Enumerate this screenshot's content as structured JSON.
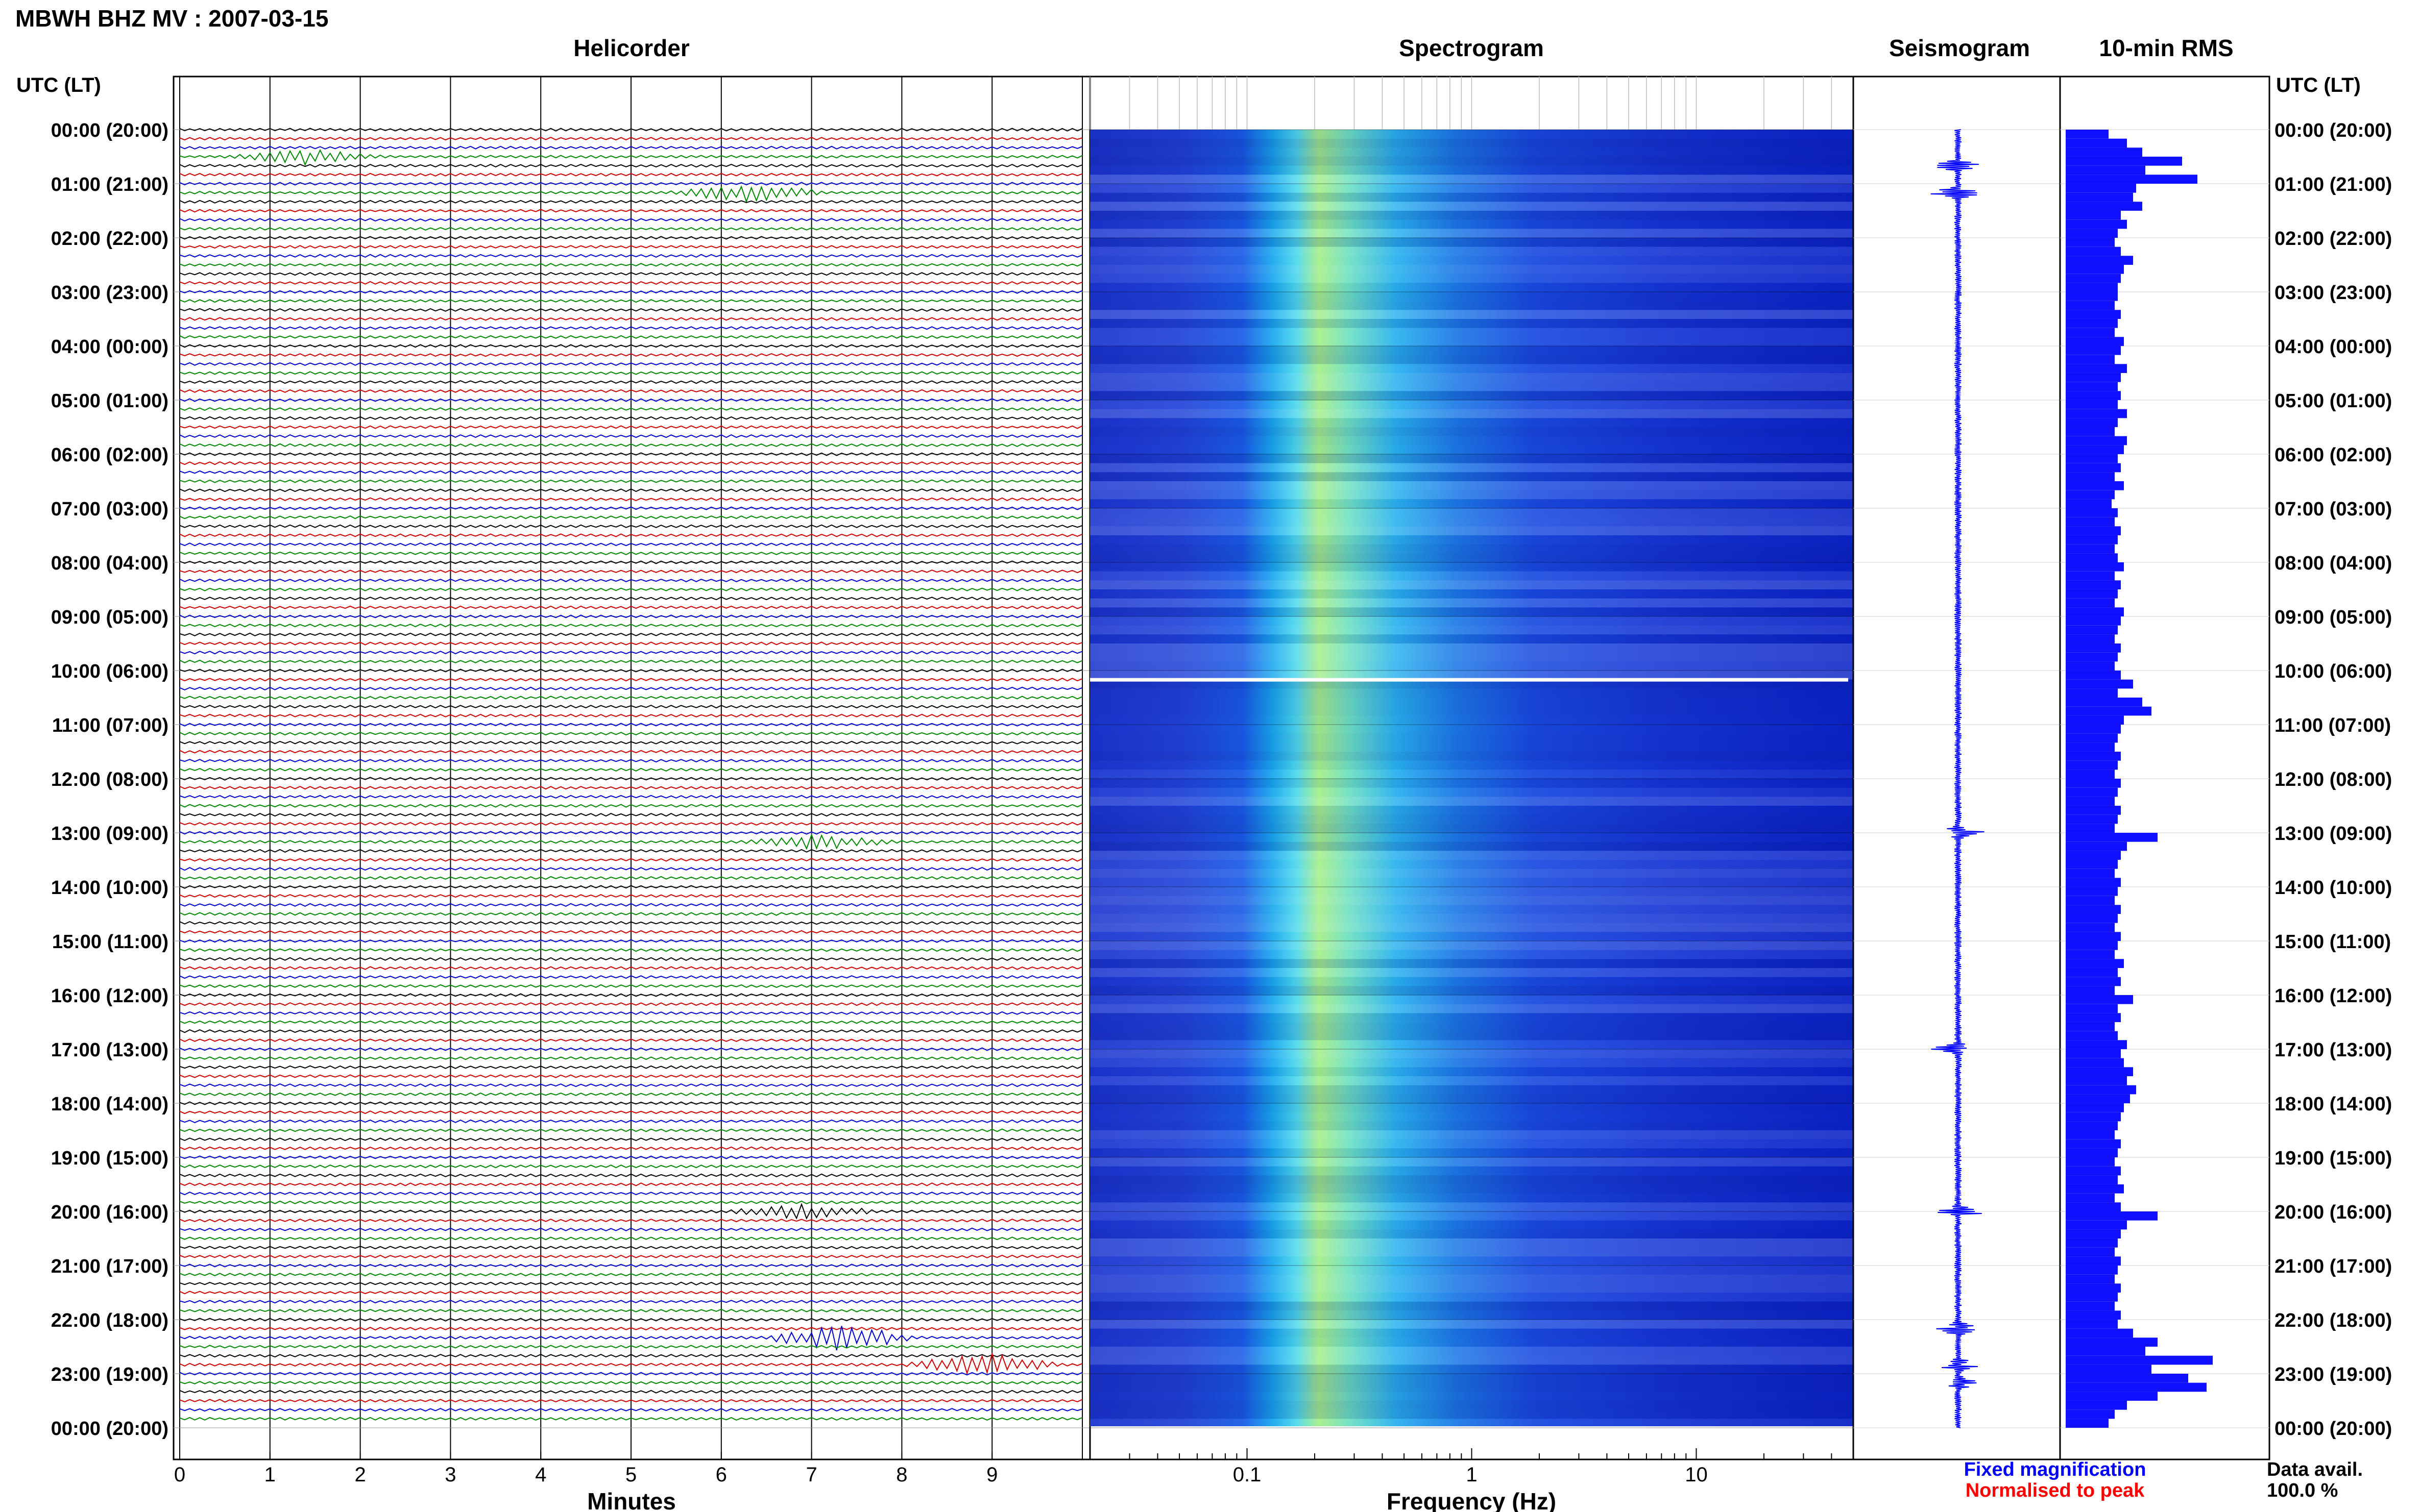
{
  "title": "MBWH BHZ MV : 2007-03-15",
  "panels": {
    "helicorder": "Helicorder",
    "spectrogram": "Spectrogram",
    "seismogram": "Seismogram",
    "rms": "10-min RMS"
  },
  "axis_headers": {
    "left": "UTC (LT)",
    "right": "UTC (LT)"
  },
  "time_labels": [
    "00:00 (20:00)",
    "01:00 (21:00)",
    "02:00 (22:00)",
    "03:00 (23:00)",
    "04:00 (00:00)",
    "05:00 (01:00)",
    "06:00 (02:00)",
    "07:00 (03:00)",
    "08:00 (04:00)",
    "09:00 (05:00)",
    "10:00 (06:00)",
    "11:00 (07:00)",
    "12:00 (08:00)",
    "13:00 (09:00)",
    "14:00 (10:00)",
    "15:00 (11:00)",
    "16:00 (12:00)",
    "17:00 (13:00)",
    "18:00 (14:00)",
    "19:00 (15:00)",
    "20:00 (16:00)",
    "21:00 (17:00)",
    "22:00 (18:00)",
    "23:00 (19:00)",
    "00:00 (20:00)"
  ],
  "x_axes": {
    "helicorder": {
      "label": "Minutes",
      "ticks": [
        "0",
        "1",
        "2",
        "3",
        "4",
        "5",
        "6",
        "7",
        "8",
        "9"
      ],
      "range": [
        0,
        10
      ]
    },
    "spectrogram": {
      "label": "Frequency (Hz)",
      "ticks": [
        "0.1",
        "1",
        "10"
      ],
      "scale": "log",
      "range": [
        0.02,
        50
      ]
    }
  },
  "legend": {
    "fixed": "Fixed magnification",
    "normalised": "Normalised to peak",
    "fixed_color": "#0000ff",
    "normalised_color": "#ff0000"
  },
  "data_avail": {
    "label": "Data avail.",
    "value": "100.0 %"
  },
  "colors": {
    "trace_cycle": [
      "#000000",
      "#cc0000",
      "#0000cc",
      "#008800"
    ],
    "spectrogram_base": "#1a2fd6",
    "rms_bar": "#1010ff"
  },
  "chart_data": [
    {
      "type": "line",
      "name": "Helicorder",
      "x_unit": "minutes",
      "xlim": [
        0,
        10
      ],
      "rows_per_hour": 6,
      "rows": 144,
      "events": [
        {
          "time": "00:30",
          "minute": 1.4,
          "amplitude": 3
        },
        {
          "time": "01:10",
          "minute": 6.3,
          "amplitude": 4
        },
        {
          "time": "13:10",
          "minute": 7.1,
          "amplitude": 3
        },
        {
          "time": "20:00",
          "minute": 6.9,
          "amplitude": 3
        },
        {
          "time": "22:20",
          "minute": 7.3,
          "amplitude": 6
        },
        {
          "time": "22:50",
          "minute": 8.9,
          "amplitude": 5
        }
      ]
    },
    {
      "type": "heatmap",
      "name": "Spectrogram",
      "x_unit": "Hz",
      "x_scale": "log",
      "xlim": [
        0.02,
        50
      ],
      "dominant_band_hz": [
        0.2,
        0.5
      ],
      "gap_time": "10:10"
    },
    {
      "type": "line",
      "name": "Seismogram",
      "bursts": [
        "00:40",
        "01:10",
        "13:00",
        "17:00",
        "20:00",
        "22:10",
        "22:50",
        "23:10"
      ]
    },
    {
      "type": "bar",
      "name": "10-min RMS",
      "orientation": "horizontal",
      "categories": [
        "00:00",
        "00:10",
        "00:20",
        "00:30",
        "00:40",
        "00:50",
        "01:00",
        "01:10",
        "01:20",
        "01:30",
        "01:40",
        "01:50",
        "02:00",
        "02:10",
        "02:20",
        "02:30",
        "02:40",
        "02:50",
        "03:00",
        "03:10",
        "03:20",
        "03:30",
        "03:40",
        "03:50",
        "04:00",
        "04:10",
        "04:20",
        "04:30",
        "04:40",
        "04:50",
        "05:00",
        "05:10",
        "05:20",
        "05:30",
        "05:40",
        "05:50",
        "06:00",
        "06:10",
        "06:20",
        "06:30",
        "06:40",
        "06:50",
        "07:00",
        "07:10",
        "07:20",
        "07:30",
        "07:40",
        "07:50",
        "08:00",
        "08:10",
        "08:20",
        "08:30",
        "08:40",
        "08:50",
        "09:00",
        "09:10",
        "09:20",
        "09:30",
        "09:40",
        "09:50",
        "10:00",
        "10:10",
        "10:20",
        "10:30",
        "10:40",
        "10:50",
        "11:00",
        "11:10",
        "11:20",
        "11:30",
        "11:40",
        "11:50",
        "12:00",
        "12:10",
        "12:20",
        "12:30",
        "12:40",
        "12:50",
        "13:00",
        "13:10",
        "13:20",
        "13:30",
        "13:40",
        "13:50",
        "14:00",
        "14:10",
        "14:20",
        "14:30",
        "14:40",
        "14:50",
        "15:00",
        "15:10",
        "15:20",
        "15:30",
        "15:40",
        "15:50",
        "16:00",
        "16:10",
        "16:20",
        "16:30",
        "16:40",
        "16:50",
        "17:00",
        "17:10",
        "17:20",
        "17:30",
        "17:40",
        "17:50",
        "18:00",
        "18:10",
        "18:20",
        "18:30",
        "18:40",
        "18:50",
        "19:00",
        "19:10",
        "19:20",
        "19:30",
        "19:40",
        "19:50",
        "20:00",
        "20:10",
        "20:20",
        "20:30",
        "20:40",
        "20:50",
        "21:00",
        "21:10",
        "21:20",
        "21:30",
        "21:40",
        "21:50",
        "22:00",
        "22:10",
        "22:20",
        "22:30",
        "22:40",
        "22:50",
        "23:00",
        "23:10",
        "23:20",
        "23:30",
        "23:40",
        "23:50"
      ],
      "values": [
        0.14,
        0.2,
        0.25,
        0.38,
        0.26,
        0.43,
        0.23,
        0.22,
        0.25,
        0.18,
        0.2,
        0.17,
        0.16,
        0.18,
        0.22,
        0.19,
        0.18,
        0.17,
        0.17,
        0.16,
        0.18,
        0.17,
        0.16,
        0.19,
        0.18,
        0.16,
        0.2,
        0.18,
        0.17,
        0.18,
        0.17,
        0.2,
        0.17,
        0.16,
        0.2,
        0.19,
        0.17,
        0.18,
        0.16,
        0.19,
        0.16,
        0.15,
        0.17,
        0.16,
        0.18,
        0.17,
        0.16,
        0.17,
        0.19,
        0.16,
        0.18,
        0.17,
        0.16,
        0.19,
        0.18,
        0.17,
        0.16,
        0.18,
        0.17,
        0.16,
        0.18,
        0.22,
        0.17,
        0.25,
        0.28,
        0.19,
        0.18,
        0.17,
        0.16,
        0.18,
        0.17,
        0.16,
        0.18,
        0.17,
        0.16,
        0.18,
        0.17,
        0.16,
        0.3,
        0.2,
        0.18,
        0.17,
        0.16,
        0.18,
        0.17,
        0.16,
        0.18,
        0.17,
        0.16,
        0.18,
        0.17,
        0.16,
        0.19,
        0.17,
        0.18,
        0.16,
        0.22,
        0.17,
        0.18,
        0.16,
        0.17,
        0.2,
        0.18,
        0.19,
        0.22,
        0.2,
        0.23,
        0.21,
        0.19,
        0.18,
        0.17,
        0.16,
        0.18,
        0.17,
        0.16,
        0.18,
        0.17,
        0.19,
        0.16,
        0.18,
        0.3,
        0.2,
        0.18,
        0.17,
        0.16,
        0.18,
        0.17,
        0.16,
        0.18,
        0.17,
        0.16,
        0.18,
        0.17,
        0.22,
        0.3,
        0.26,
        0.48,
        0.28,
        0.4,
        0.46,
        0.3,
        0.2,
        0.16,
        0.14
      ],
      "xlabel": "",
      "ylabel": ""
    }
  ]
}
